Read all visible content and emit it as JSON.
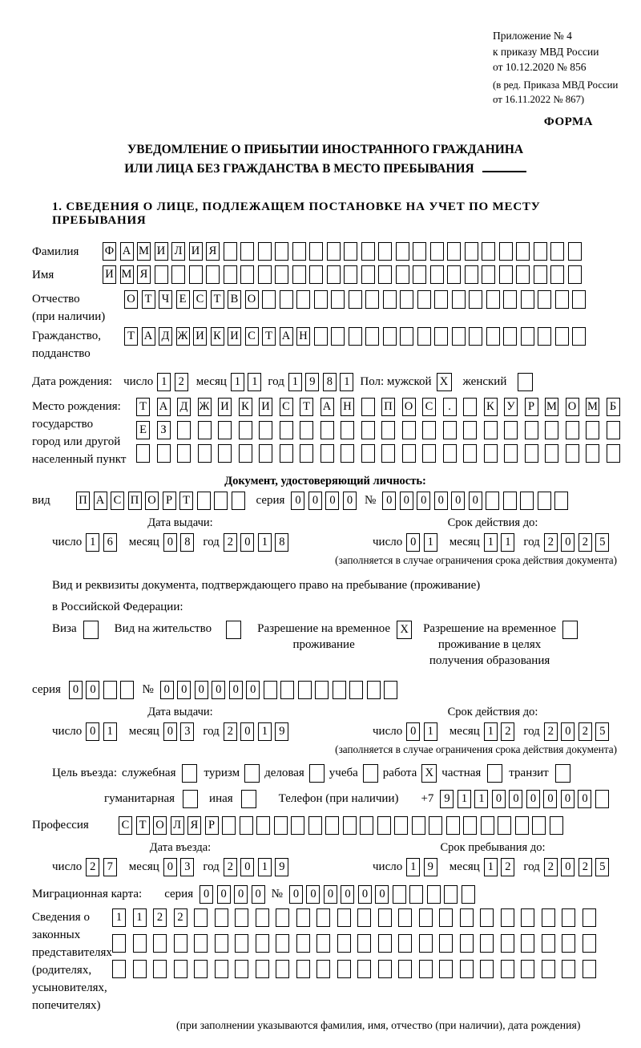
{
  "header": {
    "appendix": [
      "Приложение № 4",
      "к приказу МВД России",
      "от 10.12.2020 № 856"
    ],
    "amendment": [
      "(в ред. Приказа МВД России",
      "от 16.11.2022 № 867)"
    ],
    "form_label": "ФОРМА"
  },
  "title": {
    "line1": "УВЕДОМЛЕНИЕ О ПРИБЫТИИ ИНОСТРАННОГО ГРАЖДАНИНА",
    "line2": "ИЛИ ЛИЦА БЕЗ ГРАЖДАНСТВА В МЕСТО ПРЕБЫВАНИЯ"
  },
  "section1_heading": "1. СВЕДЕНИЯ О ЛИЦЕ, ПОДЛЕЖАЩЕМ ПОСТАНОВКЕ НА УЧЕТ ПО МЕСТУ ПРЕБЫВАНИЯ",
  "date_labels": {
    "day": "число",
    "month": "месяц",
    "year": "год"
  },
  "person": {
    "surname": {
      "label": "Фамилия",
      "value": "ФАМИЛИЯ",
      "len": 28
    },
    "given_name": {
      "label": "Имя",
      "value": "ИМЯ",
      "len": 28
    },
    "patronymic": {
      "label": "Отчество",
      "label2": "(при наличии)",
      "value": "ОТЧЕСТВО",
      "len": 27
    },
    "citizenship": {
      "label": "Гражданство,",
      "label2": "подданство",
      "value": "ТАДЖИКИСТАН",
      "len": 27
    },
    "birth_date": {
      "label": "Дата рождения:",
      "day": {
        "value": "12",
        "len": 2
      },
      "month": {
        "value": "11",
        "len": 2
      },
      "year": {
        "value": "1981",
        "len": 4
      }
    },
    "sex": {
      "male_label": "Пол: мужской",
      "male_checked": "X",
      "female_label": "женский",
      "female_checked": ""
    },
    "birth_place": {
      "label_lines": [
        "Место рождения:",
        "государство",
        "город или другой",
        "населенный пункт"
      ],
      "rows": [
        {
          "value": "ТАДЖИКИСТАН ПОС. КУРМОМБ",
          "len": 24
        },
        {
          "value": "ЕЗ",
          "len": 24
        },
        {
          "value": "",
          "len": 24
        }
      ]
    }
  },
  "identity_doc": {
    "heading": "Документ, удостоверяющий личность:",
    "type_label": "вид",
    "type": {
      "value": "ПАСПОРТ",
      "len": 10
    },
    "series_label": "серия",
    "series": {
      "value": "0000",
      "len": 4
    },
    "number_label": "№",
    "number": {
      "value": "000000",
      "len": 11
    },
    "issue_heading": "Дата выдачи:",
    "issue": {
      "day": {
        "value": "16",
        "len": 2
      },
      "month": {
        "value": "08",
        "len": 2
      },
      "year": {
        "value": "2018",
        "len": 4
      }
    },
    "expiry_heading": "Срок действия до:",
    "expiry": {
      "day": {
        "value": "01",
        "len": 2
      },
      "month": {
        "value": "11",
        "len": 2
      },
      "year": {
        "value": "2025",
        "len": 4
      }
    },
    "footnote": "(заполняется в случае ограничения срока действия документа)"
  },
  "residence_doc": {
    "line1": "Вид и реквизиты документа, подтверждающего право на пребывание (проживание)",
    "line2": "в Российской Федерации:",
    "options": [
      {
        "label": "Виза",
        "checked": ""
      },
      {
        "label": "Вид на жительство",
        "checked": ""
      },
      {
        "lines": [
          "Разрешение на временное",
          "проживание"
        ],
        "checked": "X"
      },
      {
        "lines": [
          "Разрешение на временное",
          "проживание в целях",
          "получения образования"
        ],
        "checked": ""
      }
    ],
    "series_label": "серия",
    "series": {
      "value": "00",
      "len": 4
    },
    "number_label": "№",
    "number": {
      "value": "000000",
      "len": 14
    },
    "issue_heading": "Дата выдачи:",
    "issue": {
      "day": {
        "value": "01",
        "len": 2
      },
      "month": {
        "value": "03",
        "len": 2
      },
      "year": {
        "value": "2019",
        "len": 4
      }
    },
    "expiry_heading": "Срок действия до:",
    "expiry": {
      "day": {
        "value": "01",
        "len": 2
      },
      "month": {
        "value": "12",
        "len": 2
      },
      "year": {
        "value": "2025",
        "len": 4
      }
    },
    "footnote": "(заполняется в случае ограничения срока действия документа)"
  },
  "purpose": {
    "label": "Цель въезда:",
    "row1": [
      {
        "label": "служебная",
        "checked": ""
      },
      {
        "label": "туризм",
        "checked": ""
      },
      {
        "label": "деловая",
        "checked": ""
      },
      {
        "label": "учеба",
        "checked": ""
      },
      {
        "label": "работа",
        "checked": "X"
      },
      {
        "label": "частная",
        "checked": ""
      },
      {
        "label": "транзит",
        "checked": ""
      }
    ],
    "row2": [
      {
        "label": "гуманитарная",
        "checked": ""
      },
      {
        "label": "иная",
        "checked": ""
      }
    ]
  },
  "phone": {
    "label": "Телефон (при наличии)",
    "prefix": "+7",
    "digits": {
      "value": "911000000",
      "len": 10
    }
  },
  "profession": {
    "label": "Профессия",
    "value": "СТОЛЯР",
    "len": 26
  },
  "entry": {
    "issue_heading": "Дата въезда:",
    "issue": {
      "day": {
        "value": "27",
        "len": 2
      },
      "month": {
        "value": "03",
        "len": 2
      },
      "year": {
        "value": "2019",
        "len": 4
      }
    },
    "expiry_heading": "Срок пребывания до:",
    "expiry": {
      "day": {
        "value": "19",
        "len": 2
      },
      "month": {
        "value": "12",
        "len": 2
      },
      "year": {
        "value": "2025",
        "len": 4
      }
    }
  },
  "migration_card": {
    "label": "Миграционная карта:",
    "series_label": "серия",
    "series": {
      "value": "0000",
      "len": 4
    },
    "number_label": "№",
    "number": {
      "value": "000000",
      "len": 11
    }
  },
  "representatives": {
    "label_lines": [
      "Сведения о",
      "законных",
      "представителях",
      "(родителях,",
      "усыновителях,",
      "попечителях)"
    ],
    "rows": [
      {
        "value": "1122",
        "len": 24
      },
      {
        "value": "",
        "len": 24
      },
      {
        "value": "",
        "len": 24
      }
    ],
    "footnote": "(при заполнении указываются фамилия, имя, отчество (при наличии), дата рождения)"
  }
}
